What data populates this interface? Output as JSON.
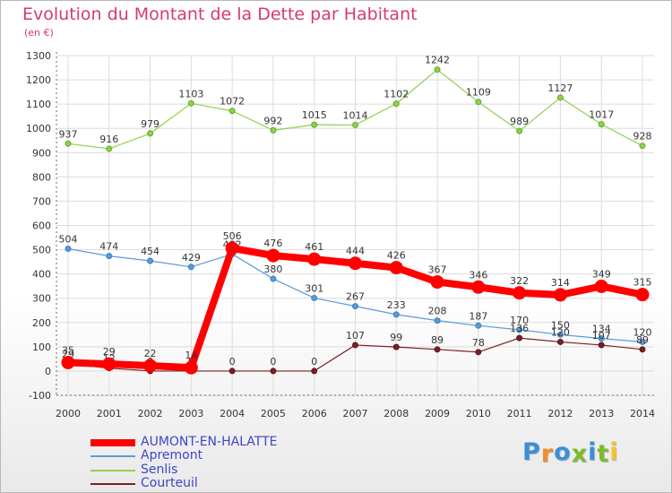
{
  "chart_data": {
    "type": "line",
    "title": "Evolution du Montant de la Dette par Habitant",
    "ylabel": "(en €)",
    "ylim": [
      -100,
      1300
    ],
    "yticks": [
      -100,
      0,
      100,
      200,
      300,
      400,
      500,
      600,
      700,
      800,
      900,
      1000,
      1100,
      1200,
      1300
    ],
    "x": [
      "2000",
      "2001",
      "2002",
      "2003",
      "2004",
      "2005",
      "2006",
      "2007",
      "2008",
      "2009",
      "2010",
      "2011",
      "2012",
      "2013",
      "2014"
    ],
    "grid": true,
    "legend_position": "bottom-left",
    "series": [
      {
        "name": "AUMONT-EN-HALATTE",
        "color": "#ff0000",
        "values": [
          35,
          29,
          22,
          14,
          506,
          476,
          461,
          444,
          426,
          367,
          346,
          322,
          314,
          349,
          315
        ]
      },
      {
        "name": "Apremont",
        "color": "#5b9bd5",
        "values": [
          504,
          474,
          454,
          429,
          482,
          380,
          301,
          267,
          233,
          208,
          187,
          170,
          150,
          134,
          120
        ]
      },
      {
        "name": "Senlis",
        "color": "#8fd14f",
        "values": [
          937,
          916,
          979,
          1103,
          1072,
          992,
          1015,
          1014,
          1102,
          1242,
          1109,
          989,
          1127,
          1017,
          928
        ]
      },
      {
        "name": "Courteuil",
        "color": "#7b1f24",
        "values": [
          29,
          12,
          0,
          0,
          0,
          0,
          0,
          107,
          99,
          89,
          78,
          136,
          120,
          107,
          89
        ]
      }
    ]
  },
  "logo": {
    "letters": [
      "P",
      "r",
      "o",
      "x",
      "i",
      "t",
      "i"
    ],
    "colors": [
      "#3b8fd9",
      "#f28c28",
      "#3b8fd9",
      "#7dbb2e",
      "#3b8fd9",
      "#7dbb2e",
      "#f2c230"
    ]
  }
}
